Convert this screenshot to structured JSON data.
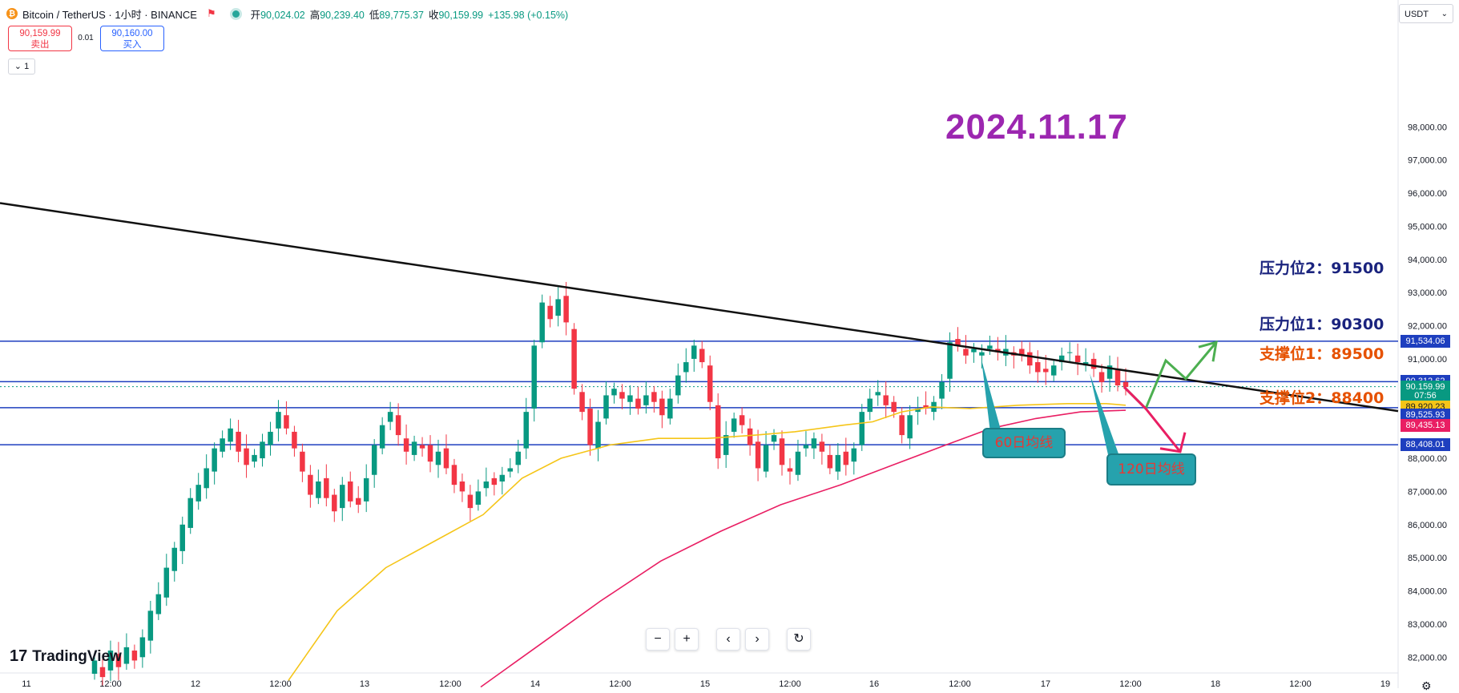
{
  "header": {
    "symbol": "Bitcoin / TetherUS · 1小时 · BINANCE",
    "logo_glyph": "₿",
    "flag_icon": "flag-icon",
    "ohlc": [
      {
        "k": "开",
        "v": "90,024.02"
      },
      {
        "k": "高",
        "v": "90,239.40"
      },
      {
        "k": "低",
        "v": "89,775.37"
      },
      {
        "k": "收",
        "v": "90,159.99"
      },
      {
        "k": "",
        "v": "+135.98 (+0.15%)"
      }
    ]
  },
  "trade": {
    "sell_price": "90,159.99",
    "sell_label": "卖出",
    "buy_price": "90,160.00",
    "buy_label": "买入",
    "spread": "0.01",
    "lots": "1"
  },
  "currency": "USDT",
  "date_stamp": "2024.11.17",
  "levels": {
    "r2": "压力位2：91500",
    "r1": "压力位1：90300",
    "s1": "支撑位1：89500",
    "s2": "支撑位2：88400"
  },
  "callouts": {
    "ma60": "60日均线",
    "ma120": "120日均线"
  },
  "price_tags": [
    {
      "text": "91,534.06",
      "price": 91534.06,
      "color": "#1e3fbf"
    },
    {
      "text": "90,312.62",
      "price": 90312.62,
      "color": "#1e3fbf"
    },
    {
      "text": "90,159.99",
      "price": 90159.99,
      "color": "#089981"
    },
    {
      "text": "07:56",
      "price": 89880,
      "color": "#089981"
    },
    {
      "text": "89,920.23",
      "price": 89560,
      "color": "#f5c518"
    },
    {
      "text": "89,525.93",
      "price": 89300,
      "color": "#1e3fbf"
    },
    {
      "text": "89,435.13",
      "price": 89000,
      "color": "#e91e63"
    },
    {
      "text": "88,408.01",
      "price": 88408.01,
      "color": "#1e3fbf"
    }
  ],
  "brand": "TradingView",
  "toolbar": {
    "zoom_out": "−",
    "zoom_in": "+",
    "scroll_left": "‹",
    "scroll_right": "›",
    "reset": "↻"
  },
  "chart_data": {
    "type": "candlestick",
    "yaxis": {
      "min": 81600,
      "max": 98800,
      "ticks": [
        82000,
        83000,
        84000,
        85000,
        86000,
        87000,
        88000,
        89000,
        90000,
        91000,
        92000,
        93000,
        94000,
        95000,
        96000,
        97000,
        98000
      ]
    },
    "xaxis": {
      "labels": [
        "11",
        "12:00",
        "12",
        "12:00",
        "13",
        "12:00",
        "14",
        "12:00",
        "15",
        "12:00",
        "16",
        "12:00",
        "17",
        "12:00",
        "18",
        "12:00",
        "19"
      ]
    },
    "horizontal_lines": [
      91534.06,
      90312.62,
      89525.93,
      88408.01
    ],
    "trendline": {
      "from_price": 95700,
      "to_price": 90150
    },
    "ma60": [
      [
        0.0,
        81300
      ],
      [
        0.05,
        83400
      ],
      [
        0.1,
        84700
      ],
      [
        0.15,
        85500
      ],
      [
        0.2,
        86300
      ],
      [
        0.24,
        87400
      ],
      [
        0.28,
        88000
      ],
      [
        0.33,
        88400
      ],
      [
        0.38,
        88600
      ],
      [
        0.43,
        88600
      ],
      [
        0.48,
        88700
      ],
      [
        0.52,
        88800
      ],
      [
        0.57,
        89000
      ],
      [
        0.6,
        89100
      ],
      [
        0.63,
        89400
      ],
      [
        0.66,
        89550
      ],
      [
        0.7,
        89500
      ],
      [
        0.75,
        89600
      ],
      [
        0.8,
        89650
      ],
      [
        0.84,
        89650
      ],
      [
        0.86,
        89600
      ]
    ],
    "ma120": [
      [
        0.0,
        81100
      ],
      [
        0.08,
        82400
      ],
      [
        0.16,
        83700
      ],
      [
        0.24,
        84900
      ],
      [
        0.32,
        85800
      ],
      [
        0.4,
        86600
      ],
      [
        0.48,
        87200
      ],
      [
        0.55,
        87800
      ],
      [
        0.62,
        88400
      ],
      [
        0.68,
        88900
      ],
      [
        0.74,
        89200
      ],
      [
        0.8,
        89400
      ],
      [
        0.86,
        89450
      ]
    ],
    "forecast_up": [
      [
        90150,
        89500
      ],
      [
        90950,
        90400
      ],
      [
        91500
      ]
    ],
    "forecast_down": [
      [
        90150,
        89500
      ],
      [
        88200
      ]
    ],
    "candles_summary": [
      [
        81500,
        81900
      ],
      [
        81700,
        81400
      ],
      [
        81600,
        82200
      ],
      [
        82100,
        81700
      ],
      [
        81800,
        82300
      ],
      [
        82200,
        81900
      ],
      [
        82000,
        82600
      ],
      [
        82500,
        83400
      ],
      [
        83300,
        83900
      ],
      [
        83800,
        84700
      ],
      [
        84600,
        85300
      ],
      [
        85200,
        86000
      ],
      [
        85900,
        86800
      ],
      [
        86700,
        87200
      ],
      [
        87100,
        87700
      ],
      [
        87600,
        88300
      ],
      [
        88200,
        88600
      ],
      [
        88500,
        88900
      ],
      [
        88800,
        88200
      ],
      [
        88300,
        87800
      ],
      [
        87900,
        88100
      ],
      [
        88000,
        88500
      ],
      [
        88400,
        88800
      ],
      [
        88900,
        89400
      ],
      [
        89300,
        88900
      ],
      [
        88800,
        88300
      ],
      [
        88200,
        87600
      ],
      [
        87500,
        86900
      ],
      [
        86800,
        87300
      ],
      [
        87400,
        86800
      ],
      [
        86900,
        86400
      ],
      [
        86500,
        87200
      ],
      [
        87300,
        86700
      ],
      [
        86800,
        86600
      ],
      [
        86700,
        87400
      ],
      [
        87500,
        88400
      ],
      [
        88300,
        89000
      ],
      [
        89100,
        89400
      ],
      [
        89300,
        88700
      ],
      [
        88600,
        88200
      ],
      [
        88100,
        88500
      ],
      [
        88400,
        88300
      ],
      [
        88400,
        87900
      ],
      [
        87800,
        88200
      ],
      [
        88300,
        87700
      ],
      [
        87800,
        87200
      ],
      [
        87300,
        87000
      ],
      [
        86900,
        86500
      ],
      [
        86600,
        87000
      ],
      [
        87100,
        87300
      ],
      [
        87400,
        87200
      ],
      [
        87300,
        87500
      ],
      [
        87600,
        87700
      ],
      [
        87800,
        88200
      ],
      [
        88300,
        89400
      ],
      [
        89500,
        91400
      ],
      [
        91500,
        92700
      ],
      [
        92600,
        92200
      ],
      [
        92300,
        92800
      ],
      [
        92900,
        92100
      ],
      [
        91900,
        90100
      ],
      [
        90000,
        89400
      ],
      [
        89500,
        88400
      ],
      [
        88300,
        89100
      ],
      [
        89200,
        89900
      ],
      [
        89900,
        90100
      ],
      [
        90000,
        89800
      ],
      [
        89700,
        89900
      ],
      [
        89800,
        89500
      ],
      [
        89600,
        89900
      ],
      [
        90000,
        89700
      ],
      [
        89800,
        89300
      ],
      [
        89200,
        89800
      ],
      [
        89900,
        90500
      ],
      [
        90600,
        90900
      ],
      [
        91000,
        91400
      ],
      [
        91300,
        90900
      ],
      [
        90800,
        89700
      ],
      [
        89600,
        88000
      ],
      [
        88100,
        88700
      ],
      [
        88800,
        89200
      ],
      [
        89300,
        89000
      ],
      [
        88900,
        88400
      ],
      [
        88500,
        87700
      ],
      [
        87600,
        88400
      ],
      [
        88500,
        88700
      ],
      [
        88600,
        87800
      ],
      [
        87700,
        87600
      ],
      [
        87500,
        88200
      ],
      [
        88300,
        88400
      ],
      [
        88300,
        88600
      ],
      [
        88500,
        88200
      ],
      [
        88100,
        87700
      ],
      [
        87600,
        88100
      ],
      [
        88200,
        87800
      ],
      [
        87900,
        88300
      ],
      [
        88400,
        89400
      ],
      [
        89400,
        89800
      ],
      [
        89900,
        90000
      ],
      [
        89900,
        89600
      ],
      [
        89700,
        89400
      ],
      [
        89300,
        88700
      ],
      [
        88600,
        89300
      ],
      [
        89400,
        89500
      ],
      [
        89600,
        89500
      ],
      [
        89400,
        89700
      ],
      [
        89800,
        90300
      ],
      [
        90400,
        91500
      ],
      [
        91600,
        91400
      ],
      [
        91300,
        91100
      ],
      [
        91200,
        91300
      ],
      [
        91100,
        91200
      ],
      [
        91300,
        91400
      ],
      [
        91300,
        91200
      ],
      [
        91100,
        91300
      ],
      [
        91200,
        91100
      ],
      [
        91300,
        91100
      ],
      [
        91200,
        90800
      ],
      [
        90900,
        90600
      ],
      [
        90700,
        90600
      ],
      [
        90500,
        90800
      ],
      [
        90900,
        91100
      ],
      [
        91200,
        91200
      ],
      [
        91100,
        90900
      ],
      [
        90800,
        90900
      ],
      [
        91000,
        90700
      ],
      [
        90600,
        90300
      ],
      [
        90400,
        90800
      ],
      [
        90700,
        90200
      ],
      [
        90300,
        90150
      ]
    ]
  }
}
